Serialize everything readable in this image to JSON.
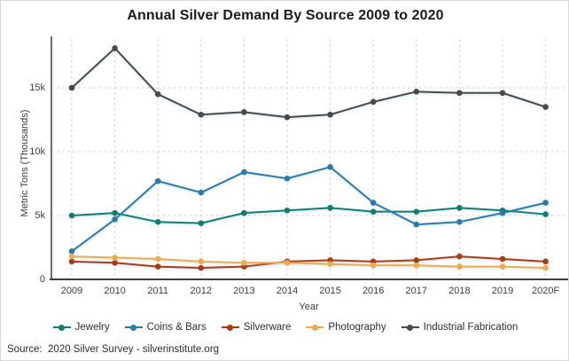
{
  "page": {
    "source": "Source:  2020 Silver Survey - silverinstitute.org"
  },
  "chart_data": {
    "type": "line",
    "title": "Annual Silver Demand By Source 2009 to 2020",
    "xlabel": "Year",
    "ylabel": "Metric Tons (Thousands)",
    "categories": [
      "2009",
      "2010",
      "2011",
      "2012",
      "2013",
      "2014",
      "2015",
      "2016",
      "2017",
      "2018",
      "2019",
      "2020F"
    ],
    "y_ticks": [
      {
        "label": "0",
        "value": 0
      },
      {
        "label": "5k",
        "value": 5
      },
      {
        "label": "10k",
        "value": 10
      },
      {
        "label": "15k",
        "value": 15
      }
    ],
    "ylim": [
      0,
      19
    ],
    "grid": "dashed",
    "legend_position": "bottom",
    "units": "thousand metric tons",
    "series": [
      {
        "name": "Jewelry",
        "color": "#147d6f",
        "values": [
          5.0,
          5.2,
          4.5,
          4.4,
          5.2,
          5.4,
          5.6,
          5.3,
          5.3,
          5.6,
          5.4,
          5.1
        ]
      },
      {
        "name": "Coins & Bars",
        "color": "#2b7ba9",
        "values": [
          2.2,
          4.7,
          7.7,
          6.8,
          8.4,
          7.9,
          8.8,
          6.0,
          4.3,
          4.5,
          5.2,
          6.0
        ]
      },
      {
        "name": "Silverware",
        "color": "#ab3b15",
        "values": [
          1.4,
          1.3,
          1.0,
          0.9,
          1.0,
          1.4,
          1.5,
          1.4,
          1.5,
          1.8,
          1.6,
          1.4
        ]
      },
      {
        "name": "Photography",
        "color": "#edac4e",
        "values": [
          1.8,
          1.7,
          1.6,
          1.4,
          1.3,
          1.3,
          1.2,
          1.1,
          1.1,
          1.0,
          1.0,
          0.9
        ]
      },
      {
        "name": "Industrial Fabrication",
        "color": "#4a4a4a",
        "values": [
          15.0,
          18.1,
          14.5,
          12.9,
          13.1,
          12.7,
          12.9,
          13.9,
          14.7,
          14.6,
          14.6,
          13.5
        ]
      }
    ]
  }
}
